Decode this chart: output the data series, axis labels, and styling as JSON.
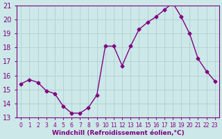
{
  "x": [
    0,
    1,
    2,
    3,
    4,
    5,
    6,
    7,
    8,
    9,
    10,
    11,
    12,
    13,
    14,
    15,
    16,
    17,
    18,
    19,
    20,
    21,
    22,
    23
  ],
  "y": [
    15.4,
    15.7,
    15.5,
    14.9,
    14.7,
    13.8,
    13.3,
    13.3,
    13.7,
    14.6,
    18.1,
    18.1,
    16.7,
    18.1,
    19.3,
    19.8,
    20.2,
    20.7,
    21.2,
    20.2,
    19.0,
    17.2,
    16.3,
    15.6
  ],
  "xlim": [
    -0.5,
    23.5
  ],
  "ylim": [
    13,
    21
  ],
  "yticks": [
    13,
    14,
    15,
    16,
    17,
    18,
    19,
    20,
    21
  ],
  "xticks": [
    0,
    1,
    2,
    3,
    4,
    5,
    6,
    7,
    8,
    9,
    10,
    11,
    12,
    13,
    14,
    15,
    16,
    17,
    18,
    19,
    20,
    21,
    22,
    23
  ],
  "xlabel": "Windchill (Refroidissement éolien,°C)",
  "line_color": "#800080",
  "marker": "D",
  "marker_size": 2.5,
  "bg_color": "#cce8e8",
  "grid_color": "#aacccc",
  "line_color2": "#800080",
  "font_size": 7,
  "xlabel_fontsize": 6.5
}
